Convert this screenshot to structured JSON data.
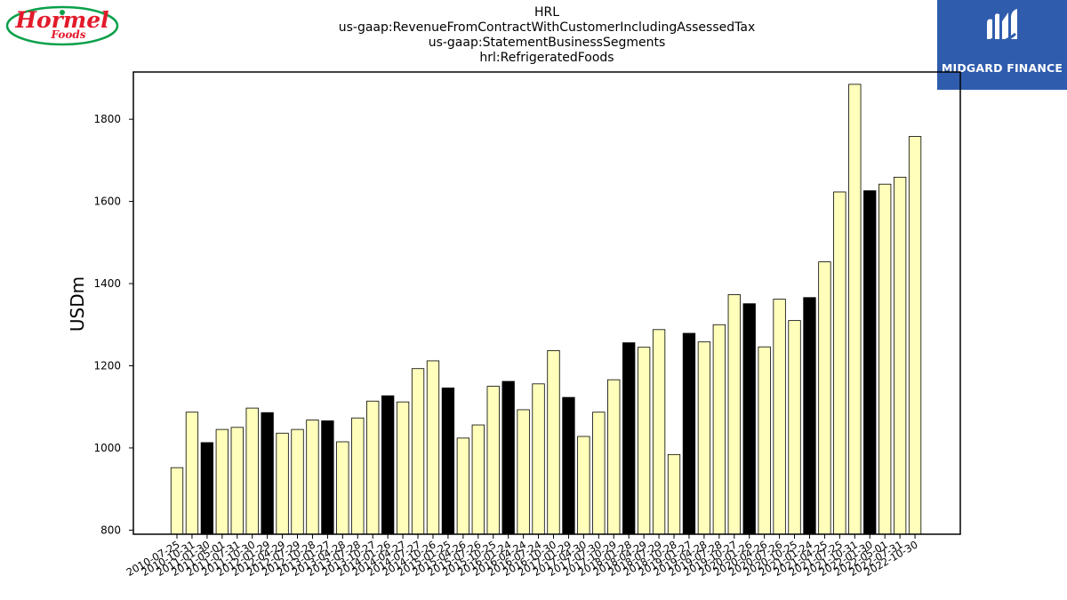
{
  "titles": {
    "line1": "HRL",
    "line2": "us-gaap:RevenueFromContractWithCustomerIncludingAssessedTax",
    "line3": "us-gaap:StatementBusinessSegments",
    "line4": "hrl:RefrigeratedFoods"
  },
  "logos": {
    "brand": "Hormel Foods",
    "brand_word": "Hormel",
    "brand_sub": "Foods",
    "partner": "MIDGARD FINANCE"
  },
  "colors": {
    "highlight": "#000000",
    "normal": "#ffffbb",
    "edge": "#000000",
    "brand_red": "#e21b2b",
    "brand_green": "#0aa04a",
    "partner_bg": "#2f5cad"
  },
  "chart_data": {
    "type": "bar",
    "ylabel": "USDm",
    "ylim": [
      790,
      1915
    ],
    "yticks": [
      800,
      1000,
      1200,
      1400,
      1600,
      1800
    ],
    "categories": [
      "2010-07-25",
      "2010-10-31",
      "2011-01-30",
      "2011-05-01",
      "2011-07-31",
      "2011-10-30",
      "2012-01-29",
      "2012-04-29",
      "2012-07-29",
      "2012-10-28",
      "2013-01-27",
      "2013-04-28",
      "2013-07-28",
      "2013-10-27",
      "2014-01-26",
      "2014-04-27",
      "2014-07-27",
      "2014-10-26",
      "2015-01-25",
      "2015-04-26",
      "2015-07-26",
      "2015-10-25",
      "2016-01-24",
      "2016-04-24",
      "2016-07-24",
      "2016-10-30",
      "2017-01-29",
      "2017-04-30",
      "2017-07-30",
      "2017-10-29",
      "2018-01-28",
      "2018-04-29",
      "2018-07-29",
      "2018-10-28",
      "2019-01-27",
      "2019-04-28",
      "2019-07-28",
      "2019-10-27",
      "2020-01-26",
      "2020-04-26",
      "2020-07-26",
      "2020-10-25",
      "2021-01-24",
      "2021-04-25",
      "2021-07-25",
      "2021-10-31",
      "2022-01-30",
      "2022-05-01",
      "2022-07-31",
      "2022-10-30"
    ],
    "values": [
      952,
      1087,
      1013,
      1045,
      1050,
      1097,
      1086,
      1036,
      1045,
      1068,
      1066,
      1015,
      1073,
      1114,
      1127,
      1112,
      1193,
      1212,
      1146,
      1024,
      1056,
      1150,
      1162,
      1093,
      1156,
      1237,
      1123,
      1028,
      1087,
      1166,
      1256,
      1245,
      1288,
      984,
      1279,
      1258,
      1300,
      1373,
      1351,
      1246,
      1362,
      1310,
      1366,
      1453,
      1623,
      1885,
      1626,
      1642,
      1659,
      1758
    ],
    "highlighted": [
      2,
      6,
      10,
      14,
      18,
      22,
      26,
      30,
      34,
      38,
      42,
      46
    ]
  }
}
